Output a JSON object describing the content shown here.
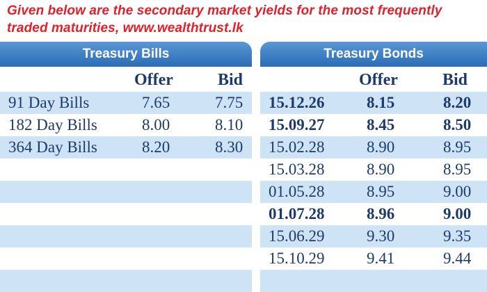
{
  "caption": "Given below are the secondary market yields for the most frequently traded maturities, www.wealthtrust.lk",
  "bills": {
    "title": "Treasury Bills",
    "offer_label": "Offer",
    "bid_label": "Bid",
    "rows": [
      {
        "name": "91 Day Bills",
        "offer": "7.65",
        "bid": "7.75"
      },
      {
        "name": "182 Day Bills",
        "offer": "8.00",
        "bid": "8.10"
      },
      {
        "name": "364 Day Bills",
        "offer": "8.20",
        "bid": "8.30"
      }
    ]
  },
  "bonds": {
    "title": "Treasury Bonds",
    "offer_label": "Offer",
    "bid_label": "Bid",
    "rows": [
      {
        "maturity": "15.12.26",
        "offer": "8.15",
        "bid": "8.20",
        "bold": true
      },
      {
        "maturity": "15.09.27",
        "offer": "8.45",
        "bid": "8.50",
        "bold": true
      },
      {
        "maturity": "15.02.28",
        "offer": "8.90",
        "bid": "8.95",
        "bold": false
      },
      {
        "maturity": "15.03.28",
        "offer": "8.90",
        "bid": "8.95",
        "bold": false
      },
      {
        "maturity": "01.05.28",
        "offer": "8.95",
        "bid": "9.00",
        "bold": false
      },
      {
        "maturity": "01.07.28",
        "offer": "8.96",
        "bid": "9.00",
        "bold": true
      },
      {
        "maturity": "15.06.29",
        "offer": "9.30",
        "bid": "9.35",
        "bold": false
      },
      {
        "maturity": "15.10.29",
        "offer": "9.41",
        "bid": "9.44",
        "bold": false
      }
    ]
  }
}
